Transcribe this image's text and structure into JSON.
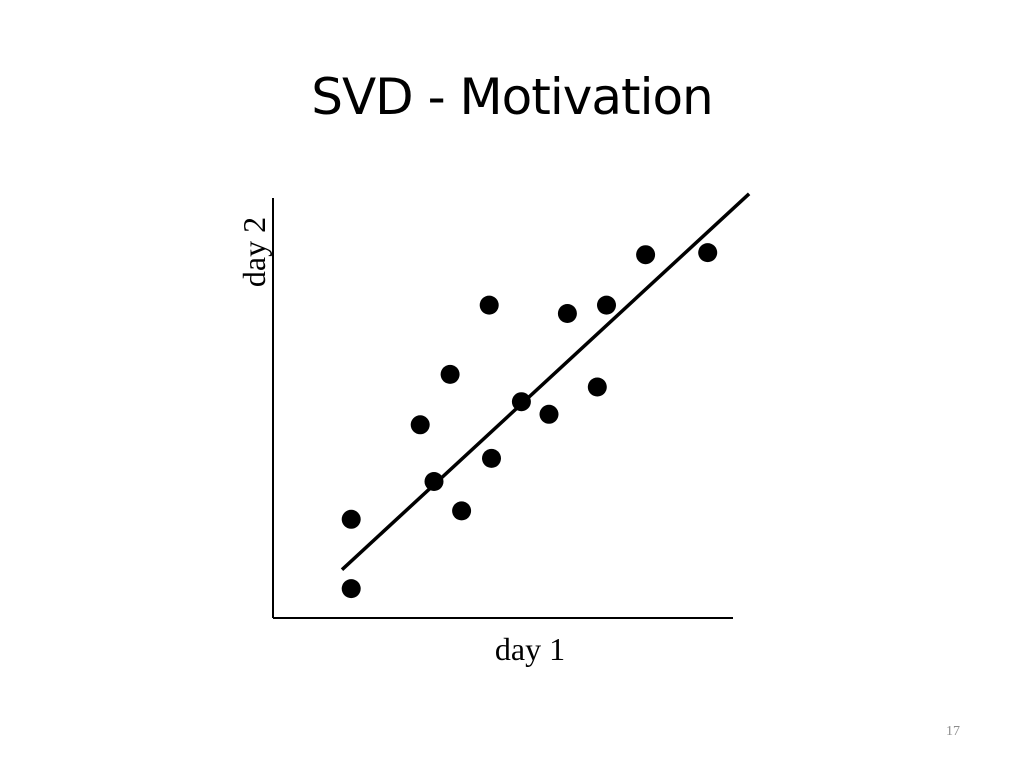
{
  "slide": {
    "title": "SVD - Motivation",
    "page_number": "17"
  },
  "chart_data": {
    "type": "scatter",
    "title": "",
    "xlabel": "day 1",
    "ylabel": "day 2",
    "xlim": [
      0,
      10
    ],
    "ylim": [
      0,
      10
    ],
    "grid": false,
    "tick_labels": false,
    "point_color": "#000000",
    "points": [
      {
        "x": 1.7,
        "y": 0.7
      },
      {
        "x": 1.7,
        "y": 2.35
      },
      {
        "x": 3.2,
        "y": 4.6
      },
      {
        "x": 3.5,
        "y": 3.25
      },
      {
        "x": 3.85,
        "y": 5.8
      },
      {
        "x": 4.1,
        "y": 2.55
      },
      {
        "x": 4.7,
        "y": 7.45
      },
      {
        "x": 4.75,
        "y": 3.8
      },
      {
        "x": 5.4,
        "y": 5.15
      },
      {
        "x": 6.0,
        "y": 4.85
      },
      {
        "x": 6.4,
        "y": 7.25
      },
      {
        "x": 7.05,
        "y": 5.5
      },
      {
        "x": 7.25,
        "y": 7.45
      },
      {
        "x": 8.1,
        "y": 8.65
      },
      {
        "x": 9.45,
        "y": 8.7
      }
    ],
    "fit_line": {
      "color": "#000000",
      "from": {
        "x": 1.5,
        "y": 1.15
      },
      "to": {
        "x": 10.35,
        "y": 10.1
      }
    }
  }
}
